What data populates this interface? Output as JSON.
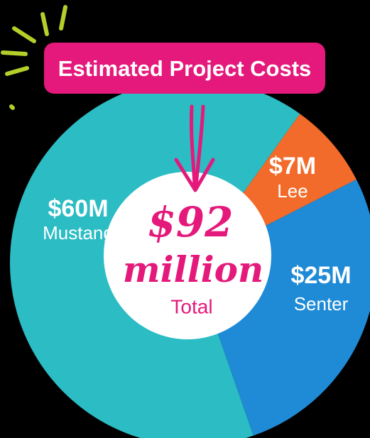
{
  "chart_data": {
    "type": "pie",
    "title": "Estimated Project Costs",
    "categories": [
      "Lee",
      "Senter",
      "Mustang"
    ],
    "values": [
      7,
      25,
      60
    ],
    "value_labels": [
      "$7M",
      "$25M",
      "$60M"
    ],
    "colors": [
      "#f26b2a",
      "#1f8bd6",
      "#2cbcc4"
    ],
    "center_text": [
      "$92",
      "million",
      "Total"
    ]
  }
}
